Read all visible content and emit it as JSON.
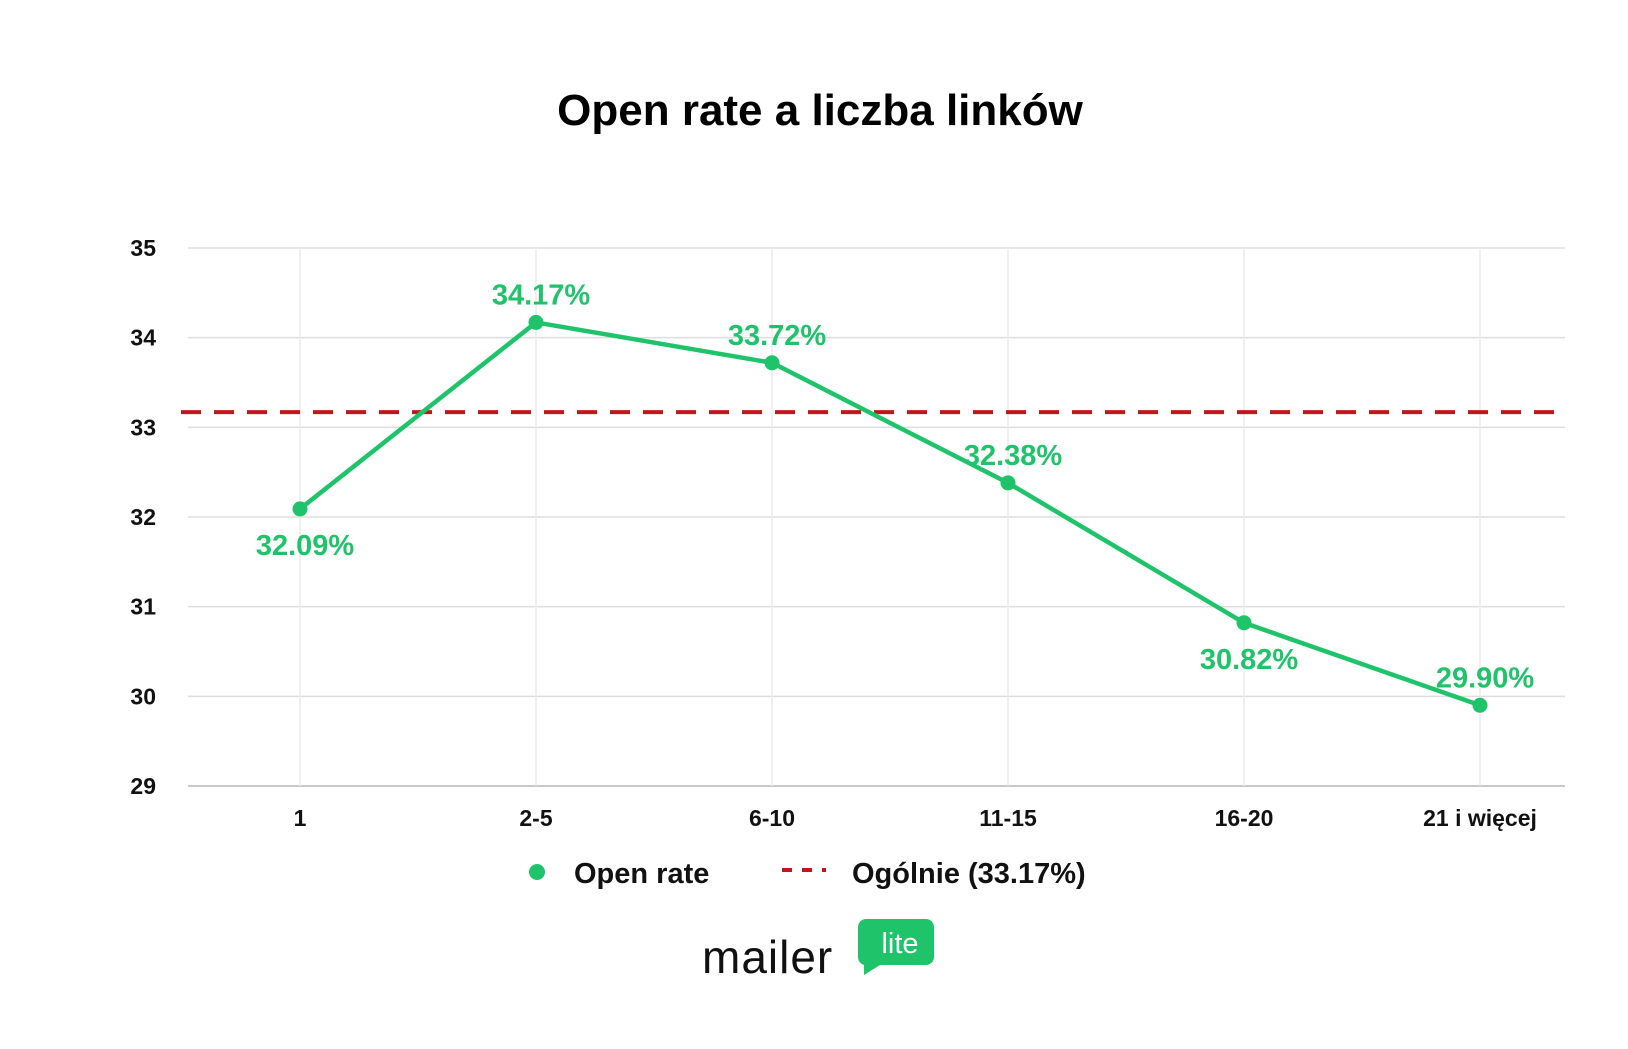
{
  "chart_data": {
    "type": "line",
    "title": "Open rate a liczba linków",
    "categories": [
      "1",
      "2-5",
      "6-10",
      "11-15",
      "16-20",
      "21 i więcej"
    ],
    "series": [
      {
        "name": "Open rate",
        "values": [
          32.09,
          34.17,
          33.72,
          32.38,
          30.82,
          29.9
        ],
        "value_labels": [
          "32.09%",
          "34.17%",
          "33.72%",
          "32.38%",
          "30.82%",
          "29.90%"
        ],
        "label_position": [
          "below",
          "above",
          "above",
          "above",
          "below",
          "above"
        ],
        "color": "#1ec36a"
      }
    ],
    "reference_line": {
      "name": "Ogólnie",
      "legend_label": "Ogólnie  (33.17%)",
      "value": 33.17,
      "color": "#c0171b",
      "style": "dashed"
    },
    "ylim": [
      29,
      35
    ],
    "yticks": [
      29,
      30,
      31,
      32,
      33,
      34,
      35
    ],
    "xlabel": "",
    "ylabel": "",
    "grid": true,
    "legend_position": "bottom-center"
  },
  "branding": {
    "logo_text": "mailer",
    "logo_bubble_text": "lite",
    "accent_color": "#1ec36a"
  }
}
